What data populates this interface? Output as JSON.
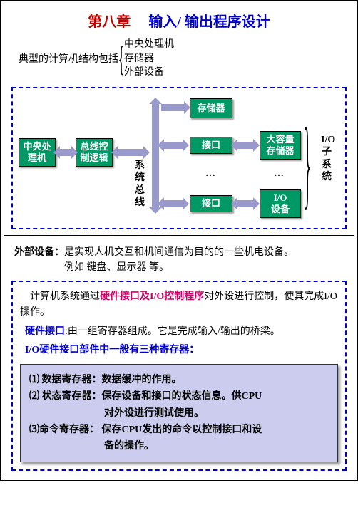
{
  "slide1": {
    "title_chapter": "第八章",
    "title_main": "输入/ 输出程序设计",
    "intro_label": "典型的计算机结构包括",
    "intro_items": [
      "中央处理机",
      "存储器",
      "外部设备"
    ],
    "diagram": {
      "nodes": {
        "cpu": "中央处\n理机",
        "bus_ctrl": "总线控\n制逻辑",
        "storage": "存储器",
        "iface1": "接口",
        "iface2": "接口",
        "mass_storage": "大容量\n存储器",
        "io_device": "I/O\n设备"
      },
      "labels": {
        "sys_bus": "系统总线",
        "io_sub": "I/O子系统"
      },
      "colors": {
        "node_fill": "#009966",
        "node_text": "#ffffff",
        "arrow": "#9999cc",
        "border": "#0000cc"
      }
    }
  },
  "slide2": {
    "top_label": "外部设备：",
    "top_text1": "是实现人机交互和机间通信为目的的一些机电设备。",
    "top_text2": "例如 键盘、显示器 等。",
    "para1_pre": "计算机系统通过",
    "para1_pink": "硬件接口及I/O控制程序",
    "para1_post": "对外设进行控制，使其完成I/O操作。",
    "para2_blue": "硬件接口",
    "para2_text": ":由一组寄存器组成。它是完成输入/输出的桥梁。",
    "para3_blue": "I/O硬件接口部件中一般有三种寄存器：",
    "registers": {
      "r1": "⑴ 数据寄存器：数据缓冲的作用。",
      "r2": "⑵ 状态寄存器：保存设备和接口的状态信息。供CPU",
      "r2b": "对外设进行测试使用。",
      "r3": "⑶命令寄存器： 保存CPU发出的命令以控制接口和设",
      "r3b": "备的操作。"
    },
    "colors": {
      "pink": "#cc0066",
      "blue": "#0000cc",
      "purple_bg": "#ccccee"
    }
  }
}
